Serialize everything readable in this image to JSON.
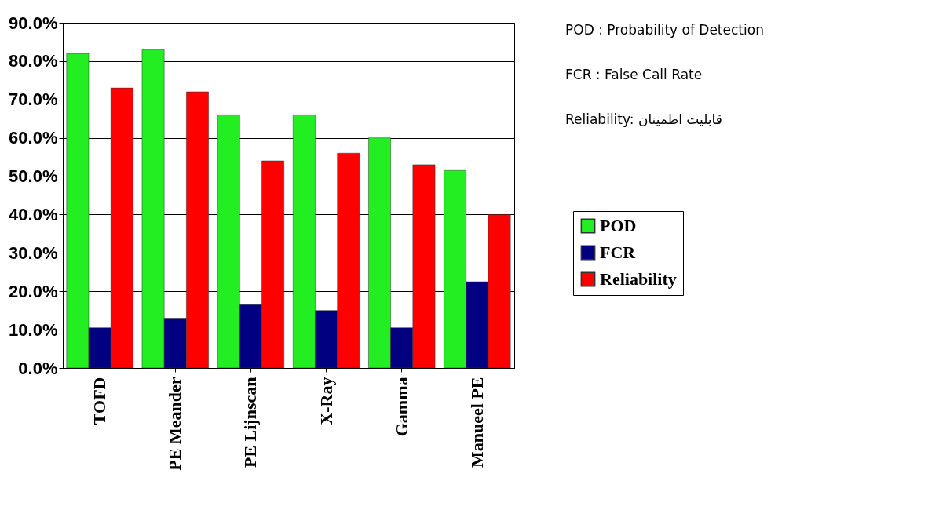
{
  "chart_data": {
    "type": "bar",
    "categories": [
      "TOFD",
      "PE Meander",
      "PE Lijnscan",
      "X-Ray",
      "Gamma",
      "Manueel PE"
    ],
    "series": [
      {
        "name": "POD",
        "color": "#22ee22",
        "values": [
          82,
          83,
          66,
          66,
          60,
          51.5
        ]
      },
      {
        "name": "FCR",
        "color": "#000080",
        "values": [
          10.5,
          13,
          16.5,
          15,
          10.5,
          22.5
        ]
      },
      {
        "name": "Reliability",
        "color": "#ff0000",
        "values": [
          73,
          72,
          54,
          56,
          53,
          40
        ]
      }
    ],
    "ylim": [
      0,
      90
    ],
    "yticks": [
      {
        "value": 0,
        "label": "0.0%"
      },
      {
        "value": 10,
        "label": "10.0%"
      },
      {
        "value": 20,
        "label": "20.0%"
      },
      {
        "value": 30,
        "label": "30.0%"
      },
      {
        "value": 40,
        "label": "40.0%"
      },
      {
        "value": 50,
        "label": "50.0%"
      },
      {
        "value": 60,
        "label": "60.0%"
      },
      {
        "value": 70,
        "label": "70.0%"
      },
      {
        "value": 80,
        "label": "80.0%"
      },
      {
        "value": 90,
        "label": "90.0%"
      }
    ],
    "grid": "y",
    "legend": "right",
    "annotations": [
      "POD : Probability of Detection",
      "FCR : False Call Rate",
      "Reliability: قابلیت اطمینان"
    ]
  }
}
